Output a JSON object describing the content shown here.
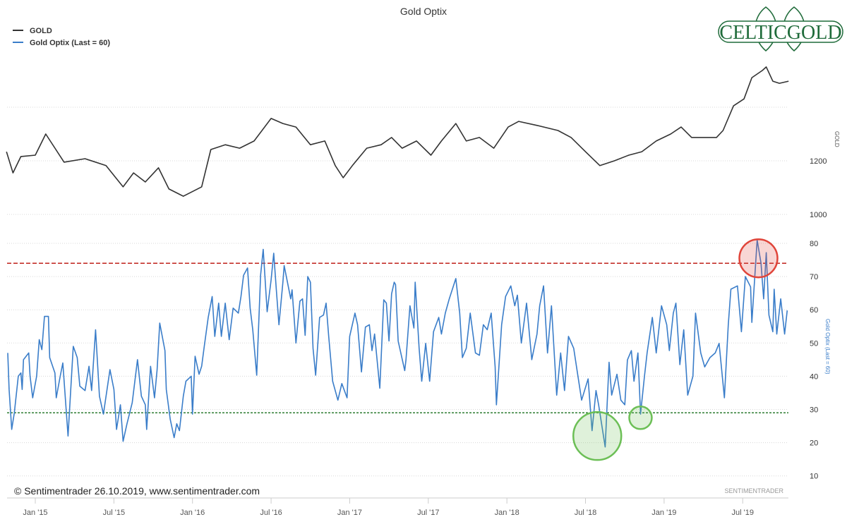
{
  "chart_data": {
    "type": "line",
    "title": "Gold Optix",
    "x_unit": "months since Jan 2015",
    "xlim": [
      -2.2,
      57.5
    ],
    "x_ticks": [
      {
        "m": 0,
        "label": "Jan '15"
      },
      {
        "m": 6,
        "label": "Jul '15"
      },
      {
        "m": 12,
        "label": "Jan '16"
      },
      {
        "m": 18,
        "label": "Jul '16"
      },
      {
        "m": 24,
        "label": "Jan '17"
      },
      {
        "m": 30,
        "label": "Jul '17"
      },
      {
        "m": 36,
        "label": "Jan '18"
      },
      {
        "m": 42,
        "label": "Jul '18"
      },
      {
        "m": 48,
        "label": "Jan '19"
      },
      {
        "m": 54,
        "label": "Jul '19"
      }
    ],
    "legend": [
      "GOLD",
      "Gold Optix (Last = 60)"
    ],
    "legend_position": "top-left",
    "panels": [
      {
        "name": "GOLD",
        "ylabel": "GOLD",
        "yticks": [
          1200,
          1000
        ],
        "gridlines": [
          1400,
          1200,
          1000
        ],
        "color": "#333333",
        "series": [
          [
            -2.2,
            1234
          ],
          [
            -1.7,
            1155
          ],
          [
            -1.1,
            1216
          ],
          [
            0,
            1221
          ],
          [
            0.8,
            1300
          ],
          [
            2.2,
            1195
          ],
          [
            3.8,
            1208
          ],
          [
            5.4,
            1182
          ],
          [
            6.7,
            1103
          ],
          [
            7.5,
            1155
          ],
          [
            8.4,
            1121
          ],
          [
            9.4,
            1174
          ],
          [
            10.2,
            1095
          ],
          [
            11.3,
            1068
          ],
          [
            12.7,
            1103
          ],
          [
            13.4,
            1242
          ],
          [
            14.5,
            1260
          ],
          [
            15.6,
            1247
          ],
          [
            16.7,
            1274
          ],
          [
            18.0,
            1358
          ],
          [
            18.9,
            1339
          ],
          [
            19.9,
            1326
          ],
          [
            21.0,
            1260
          ],
          [
            22.1,
            1274
          ],
          [
            22.9,
            1182
          ],
          [
            23.5,
            1137
          ],
          [
            24.2,
            1182
          ],
          [
            25.3,
            1247
          ],
          [
            26.4,
            1260
          ],
          [
            27.2,
            1287
          ],
          [
            28.0,
            1247
          ],
          [
            29.1,
            1274
          ],
          [
            30.2,
            1221
          ],
          [
            31.0,
            1274
          ],
          [
            32.1,
            1339
          ],
          [
            32.9,
            1274
          ],
          [
            33.9,
            1287
          ],
          [
            35.0,
            1247
          ],
          [
            36.1,
            1326
          ],
          [
            36.9,
            1347
          ],
          [
            38.3,
            1332
          ],
          [
            39.9,
            1313
          ],
          [
            40.9,
            1287
          ],
          [
            42.0,
            1234
          ],
          [
            43.1,
            1182
          ],
          [
            44.2,
            1200
          ],
          [
            45.3,
            1221
          ],
          [
            46.3,
            1234
          ],
          [
            47.4,
            1274
          ],
          [
            48.5,
            1300
          ],
          [
            49.3,
            1326
          ],
          [
            50.1,
            1287
          ],
          [
            51.2,
            1287
          ],
          [
            52.0,
            1287
          ],
          [
            52.5,
            1313
          ],
          [
            53.3,
            1405
          ],
          [
            54.1,
            1431
          ],
          [
            54.7,
            1510
          ],
          [
            55.5,
            1537
          ],
          [
            55.8,
            1550
          ],
          [
            56.3,
            1497
          ],
          [
            56.8,
            1489
          ],
          [
            57.5,
            1497
          ]
        ]
      },
      {
        "name": "Gold Optix (Last = 60)",
        "ylabel": "Gold Optix (Last = 60)",
        "yticks": [
          80,
          70,
          60,
          50,
          40,
          30,
          20,
          10
        ],
        "ylim": [
          10,
          80
        ],
        "color": "#3a7dc9",
        "last": 60,
        "thresholds": [
          {
            "value": 74,
            "color": "#c0221b"
          },
          {
            "value": 29,
            "color": "#2e7d32"
          }
        ],
        "annotations": [
          {
            "type": "circle",
            "m": 55.2,
            "v": 75.5,
            "color": "#e0453a"
          },
          {
            "type": "circle",
            "m": 42.9,
            "v": 22,
            "color": "#6cbf56"
          },
          {
            "type": "circle",
            "m": 46.2,
            "v": 27.5,
            "color": "#6cbf56"
          }
        ],
        "series": [
          [
            -2.1,
            47
          ],
          [
            -2.0,
            36
          ],
          [
            -1.8,
            24
          ],
          [
            -1.6,
            29
          ],
          [
            -1.3,
            40
          ],
          [
            -1.1,
            41
          ],
          [
            -1.0,
            36
          ],
          [
            -0.9,
            45
          ],
          [
            -0.5,
            47
          ],
          [
            -0.4,
            40
          ],
          [
            -0.2,
            33.5
          ],
          [
            0.1,
            40
          ],
          [
            0.3,
            51
          ],
          [
            0.5,
            48
          ],
          [
            0.7,
            58
          ],
          [
            1.0,
            58
          ],
          [
            1.1,
            45.6
          ],
          [
            1.5,
            41
          ],
          [
            1.6,
            33.5
          ],
          [
            1.9,
            40
          ],
          [
            2.1,
            44
          ],
          [
            2.3,
            33
          ],
          [
            2.5,
            22
          ],
          [
            2.9,
            49
          ],
          [
            3.2,
            45.6
          ],
          [
            3.4,
            37
          ],
          [
            3.8,
            35.7
          ],
          [
            4.1,
            43
          ],
          [
            4.3,
            35.7
          ],
          [
            4.6,
            54
          ],
          [
            4.9,
            34
          ],
          [
            5.2,
            28.6
          ],
          [
            5.7,
            42
          ],
          [
            6.0,
            36
          ],
          [
            6.2,
            24
          ],
          [
            6.5,
            31.4
          ],
          [
            6.7,
            20.4
          ],
          [
            7.0,
            25.7
          ],
          [
            7.4,
            32
          ],
          [
            7.8,
            45
          ],
          [
            8.1,
            34
          ],
          [
            8.4,
            31.4
          ],
          [
            8.5,
            24
          ],
          [
            8.8,
            43
          ],
          [
            9.1,
            33.5
          ],
          [
            9.3,
            42
          ],
          [
            9.5,
            56
          ],
          [
            9.9,
            47.7
          ],
          [
            10.0,
            36
          ],
          [
            10.3,
            27
          ],
          [
            10.6,
            21.5
          ],
          [
            10.8,
            25.7
          ],
          [
            11.0,
            23.6
          ],
          [
            11.3,
            34
          ],
          [
            11.5,
            38.5
          ],
          [
            11.9,
            40
          ],
          [
            12.0,
            28.6
          ],
          [
            12.2,
            46
          ],
          [
            12.5,
            40.6
          ],
          [
            12.7,
            43
          ],
          [
            12.9,
            49
          ],
          [
            13.2,
            57.7
          ],
          [
            13.5,
            64
          ],
          [
            13.7,
            52
          ],
          [
            14.0,
            62
          ],
          [
            14.2,
            52
          ],
          [
            14.5,
            62
          ],
          [
            14.8,
            51
          ],
          [
            15.1,
            60.5
          ],
          [
            15.5,
            59
          ],
          [
            15.7,
            64
          ],
          [
            15.9,
            70.4
          ],
          [
            16.2,
            72.6
          ],
          [
            16.4,
            60.5
          ],
          [
            16.6,
            54
          ],
          [
            16.9,
            40.3
          ],
          [
            17.2,
            70.4
          ],
          [
            17.4,
            78.2
          ],
          [
            17.7,
            59.4
          ],
          [
            18.0,
            69
          ],
          [
            18.2,
            77
          ],
          [
            18.4,
            66
          ],
          [
            18.6,
            55.5
          ],
          [
            18.9,
            68.3
          ],
          [
            19.0,
            73.3
          ],
          [
            19.5,
            63.3
          ],
          [
            19.6,
            66
          ],
          [
            19.9,
            50
          ],
          [
            20.2,
            62.6
          ],
          [
            20.4,
            63.3
          ],
          [
            20.6,
            52.3
          ],
          [
            20.8,
            70
          ],
          [
            21.0,
            68.3
          ],
          [
            21.2,
            48.4
          ],
          [
            21.4,
            40.3
          ],
          [
            21.7,
            57.7
          ],
          [
            22.0,
            58.4
          ],
          [
            22.2,
            62
          ],
          [
            22.4,
            52
          ],
          [
            22.7,
            38.5
          ],
          [
            23.1,
            32.8
          ],
          [
            23.4,
            37.8
          ],
          [
            23.8,
            33.5
          ],
          [
            24.0,
            52
          ],
          [
            24.4,
            59
          ],
          [
            24.6,
            55.5
          ],
          [
            24.9,
            41.3
          ],
          [
            25.2,
            54.8
          ],
          [
            25.5,
            55.5
          ],
          [
            25.7,
            47.7
          ],
          [
            25.9,
            52.7
          ],
          [
            26.3,
            36.4
          ],
          [
            26.6,
            63
          ],
          [
            26.8,
            62
          ],
          [
            27.0,
            50.6
          ],
          [
            27.2,
            64.8
          ],
          [
            27.4,
            68.3
          ],
          [
            27.5,
            67.6
          ],
          [
            27.7,
            50.6
          ],
          [
            28.2,
            41.7
          ],
          [
            28.3,
            45
          ],
          [
            28.6,
            61.2
          ],
          [
            28.9,
            54.5
          ],
          [
            29.0,
            68.3
          ],
          [
            29.3,
            48.4
          ],
          [
            29.5,
            38.5
          ],
          [
            29.8,
            49.9
          ],
          [
            30.1,
            38.5
          ],
          [
            30.4,
            53.4
          ],
          [
            30.8,
            57.7
          ],
          [
            31.0,
            52.7
          ],
          [
            31.3,
            59
          ],
          [
            31.6,
            63.3
          ],
          [
            32.1,
            69.4
          ],
          [
            32.4,
            59
          ],
          [
            32.6,
            45.6
          ],
          [
            32.9,
            48.4
          ],
          [
            33.2,
            59
          ],
          [
            33.6,
            47
          ],
          [
            33.9,
            46.3
          ],
          [
            34.2,
            55.5
          ],
          [
            34.5,
            54
          ],
          [
            34.8,
            59
          ],
          [
            35.1,
            42.8
          ],
          [
            35.2,
            31.4
          ],
          [
            35.6,
            55.5
          ],
          [
            35.9,
            64
          ],
          [
            36.3,
            67.2
          ],
          [
            36.6,
            61.2
          ],
          [
            36.8,
            64.4
          ],
          [
            37.1,
            50
          ],
          [
            37.5,
            62
          ],
          [
            37.9,
            45
          ],
          [
            38.3,
            52.7
          ],
          [
            38.5,
            61.2
          ],
          [
            38.8,
            67.2
          ],
          [
            39.1,
            47
          ],
          [
            39.4,
            61.2
          ],
          [
            39.8,
            34.3
          ],
          [
            40.1,
            47
          ],
          [
            40.4,
            35.7
          ],
          [
            40.7,
            52
          ],
          [
            41.1,
            48.4
          ],
          [
            41.4,
            40.6
          ],
          [
            41.7,
            32.8
          ],
          [
            42.2,
            39.2
          ],
          [
            42.5,
            23.6
          ],
          [
            42.8,
            35.7
          ],
          [
            43.0,
            31.4
          ],
          [
            43.5,
            18.7
          ],
          [
            43.8,
            44.2
          ],
          [
            44.0,
            34.3
          ],
          [
            44.4,
            40.6
          ],
          [
            44.7,
            32.8
          ],
          [
            45.0,
            31.4
          ],
          [
            45.2,
            44.9
          ],
          [
            45.5,
            47.7
          ],
          [
            45.7,
            38.5
          ],
          [
            46.0,
            47
          ],
          [
            46.2,
            28.6
          ],
          [
            46.5,
            39.9
          ],
          [
            46.7,
            47
          ],
          [
            47.1,
            57.7
          ],
          [
            47.4,
            47
          ],
          [
            47.8,
            61.2
          ],
          [
            48.2,
            55.5
          ],
          [
            48.4,
            47.7
          ],
          [
            48.7,
            59
          ],
          [
            48.9,
            62
          ],
          [
            49.2,
            43.5
          ],
          [
            49.5,
            54
          ],
          [
            49.8,
            34.3
          ],
          [
            50.2,
            40
          ],
          [
            50.4,
            59
          ],
          [
            50.8,
            47
          ],
          [
            51.1,
            42.8
          ],
          [
            51.5,
            45.6
          ],
          [
            51.9,
            47
          ],
          [
            52.2,
            49.9
          ],
          [
            52.6,
            33.5
          ],
          [
            52.9,
            55.5
          ],
          [
            53.1,
            66.2
          ],
          [
            53.6,
            67.2
          ],
          [
            53.9,
            53.4
          ],
          [
            54.2,
            70
          ],
          [
            54.6,
            66.9
          ],
          [
            54.7,
            56.2
          ],
          [
            55.1,
            81
          ],
          [
            55.4,
            74
          ],
          [
            55.6,
            63.3
          ],
          [
            55.8,
            77.2
          ],
          [
            56.0,
            58.4
          ],
          [
            56.3,
            53.4
          ],
          [
            56.4,
            66.2
          ],
          [
            56.6,
            52.7
          ],
          [
            56.9,
            63.3
          ],
          [
            57.2,
            52.7
          ],
          [
            57.4,
            59.8
          ]
        ]
      }
    ]
  },
  "footer": {
    "copyright": "© Sentimentrader 26.10.2019, www.sentimentrader.com",
    "watermark": "SENTIMENTRADER"
  },
  "logo": {
    "text": "CELTICGOLD",
    "color": "#1f6b3a"
  }
}
